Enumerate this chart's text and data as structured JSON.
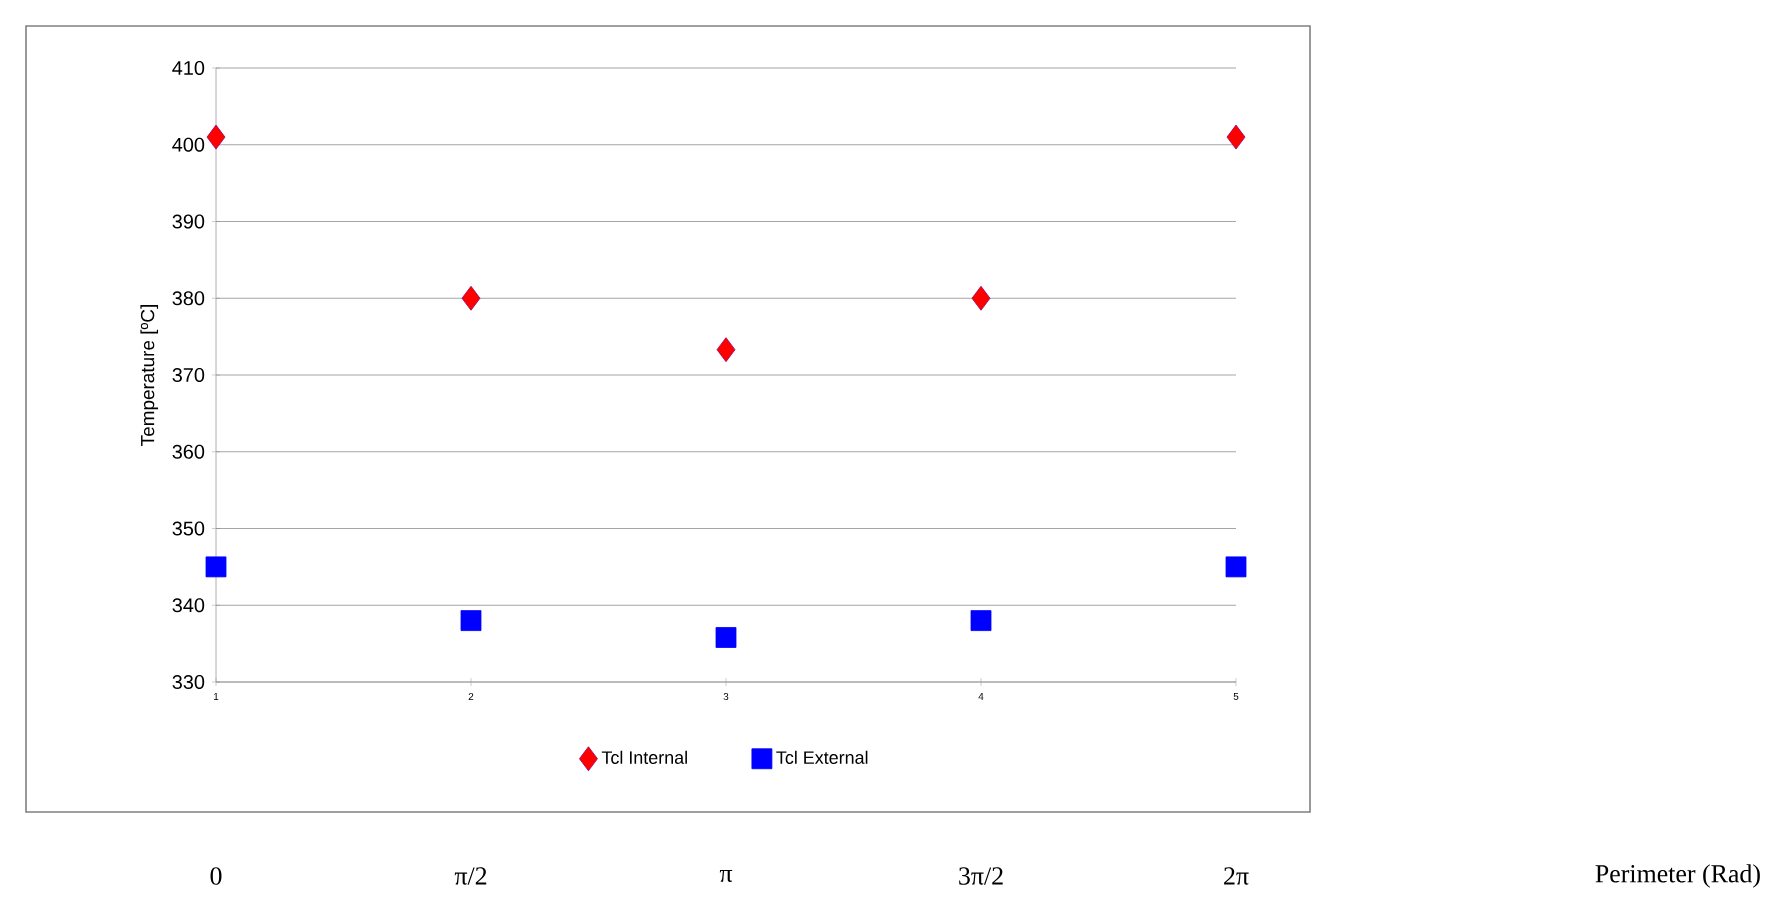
{
  "chart_data": {
    "type": "scatter",
    "ylabel": "Temperature [ºC]",
    "annotations": [
      "0",
      "π/2",
      "π",
      "3π/2",
      "2π",
      "Perimeter (Rad)"
    ],
    "x": [
      1,
      2,
      3,
      4,
      5
    ],
    "xlim": [
      1,
      5
    ],
    "xticks": [
      1,
      2,
      3,
      4,
      5
    ],
    "ylim": [
      330,
      410
    ],
    "yticks": [
      330,
      340,
      350,
      360,
      370,
      380,
      390,
      400,
      410
    ],
    "grid": "y",
    "legend": "bottom",
    "series": [
      {
        "name": "Tcl Internal",
        "color": "#ff0000",
        "marker": "diamond",
        "values": [
          401,
          380,
          373.3,
          380,
          401
        ]
      },
      {
        "name": "Tcl External",
        "color": "#0000ff",
        "marker": "square",
        "values": [
          345,
          338,
          335.8,
          338,
          345
        ]
      }
    ]
  }
}
